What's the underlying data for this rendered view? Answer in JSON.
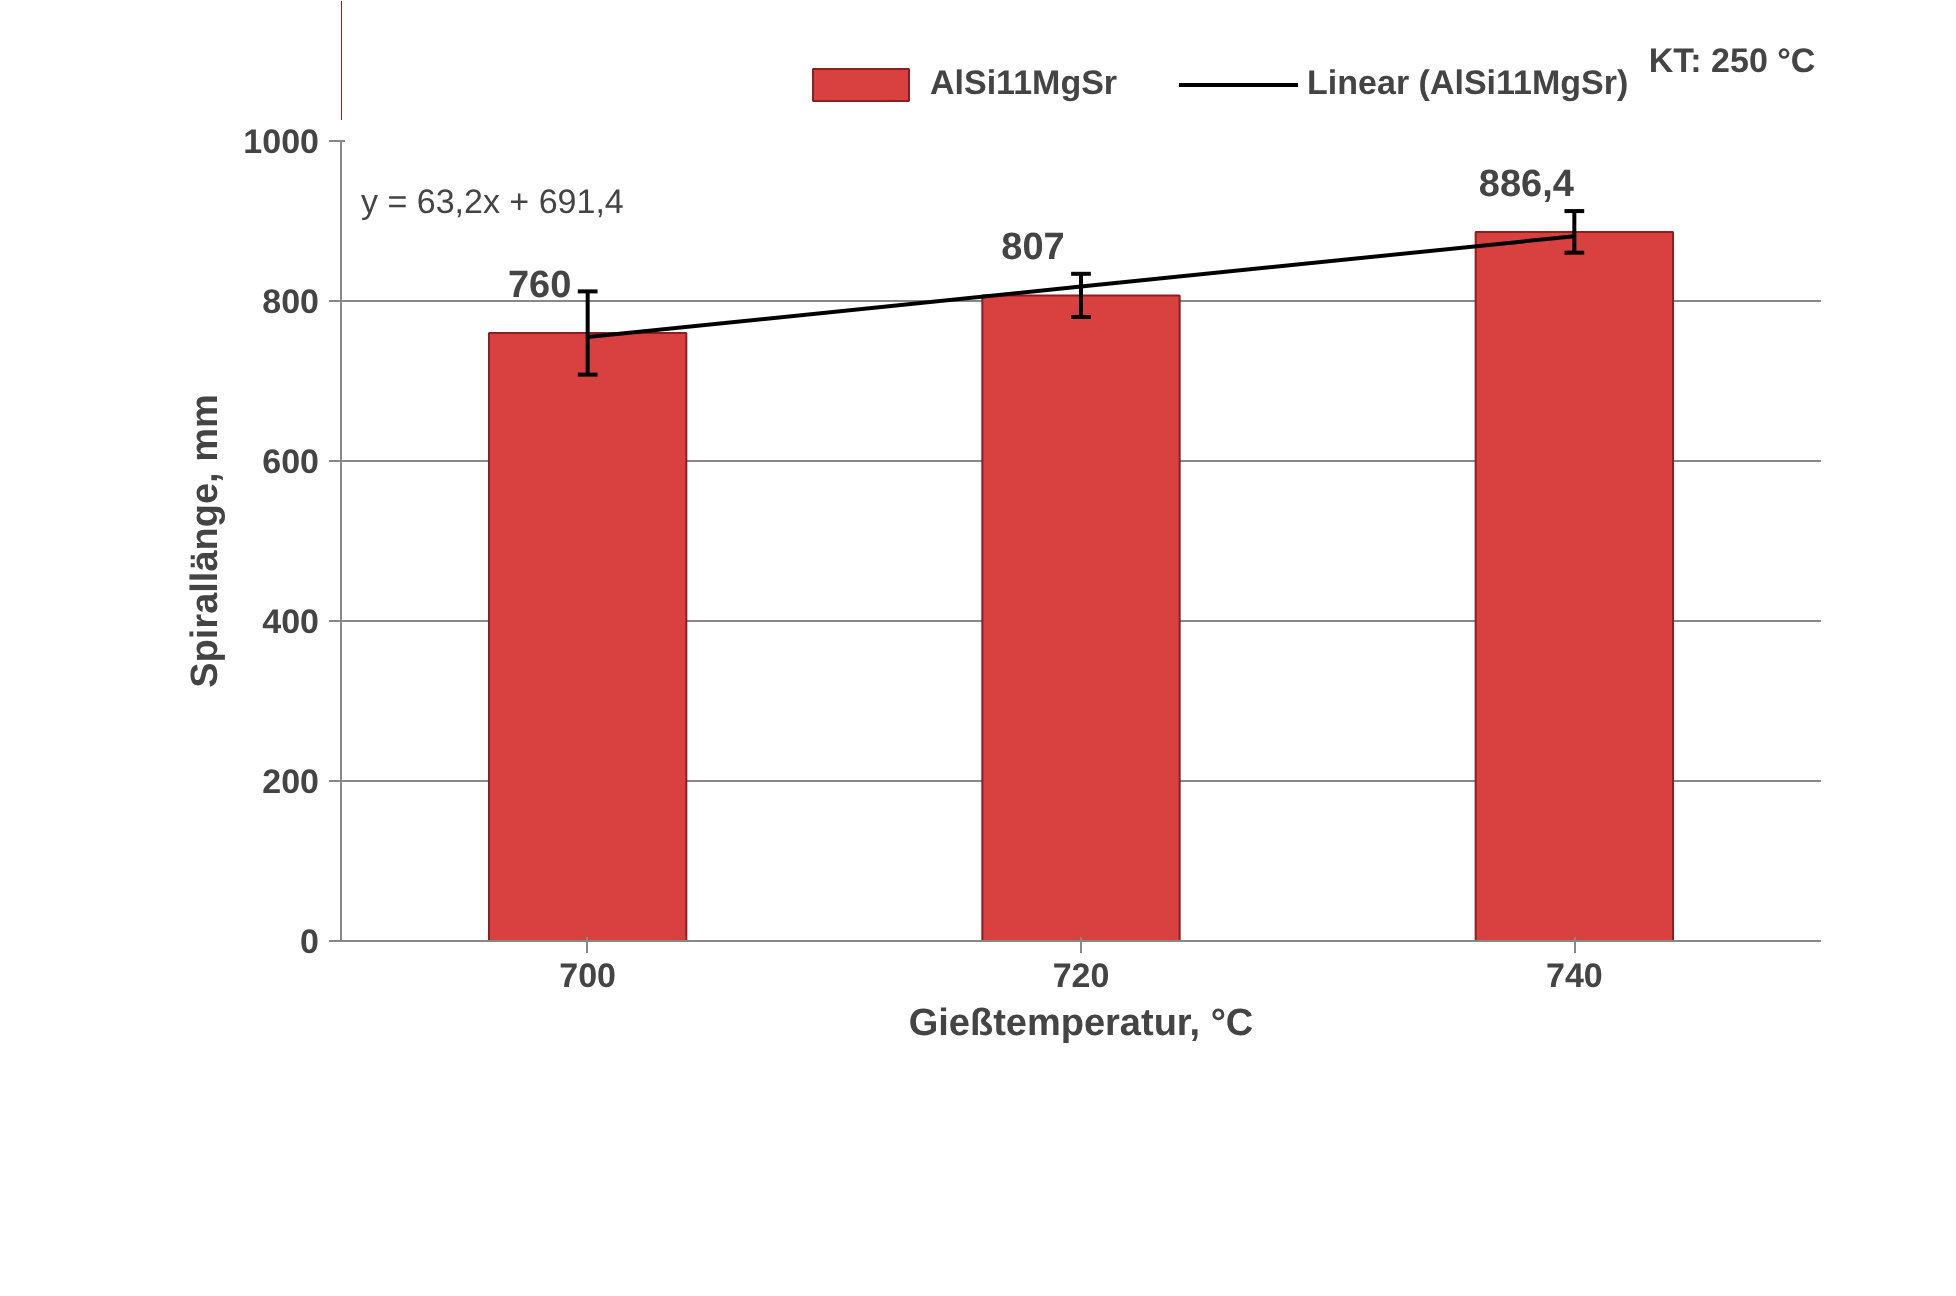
{
  "chart_data": {
    "type": "bar",
    "xlabel": "Gießtemperatur, °C",
    "ylabel": "Spirallänge, mm",
    "categories": [
      "700",
      "720",
      "740"
    ],
    "series": [
      {
        "name": "AlSi11MgSr",
        "color": "#d94040",
        "values": [
          760,
          807,
          886.4
        ],
        "errors": [
          52,
          27,
          26
        ],
        "value_labels": [
          "760",
          "807",
          "886,4"
        ]
      },
      {
        "name": "Linear (AlSi11MgSr)",
        "type": "line",
        "color": "#000000",
        "x": [
          "700",
          "720",
          "740"
        ],
        "values": [
          755,
          818,
          881
        ]
      }
    ],
    "ylim": [
      0,
      1000
    ],
    "yticks": [
      0,
      200,
      400,
      600,
      800,
      1000
    ],
    "grid": "y",
    "legend": "top",
    "annotations": [
      "KT: 250 °C",
      "y = 63,2x + 691,4"
    ]
  }
}
